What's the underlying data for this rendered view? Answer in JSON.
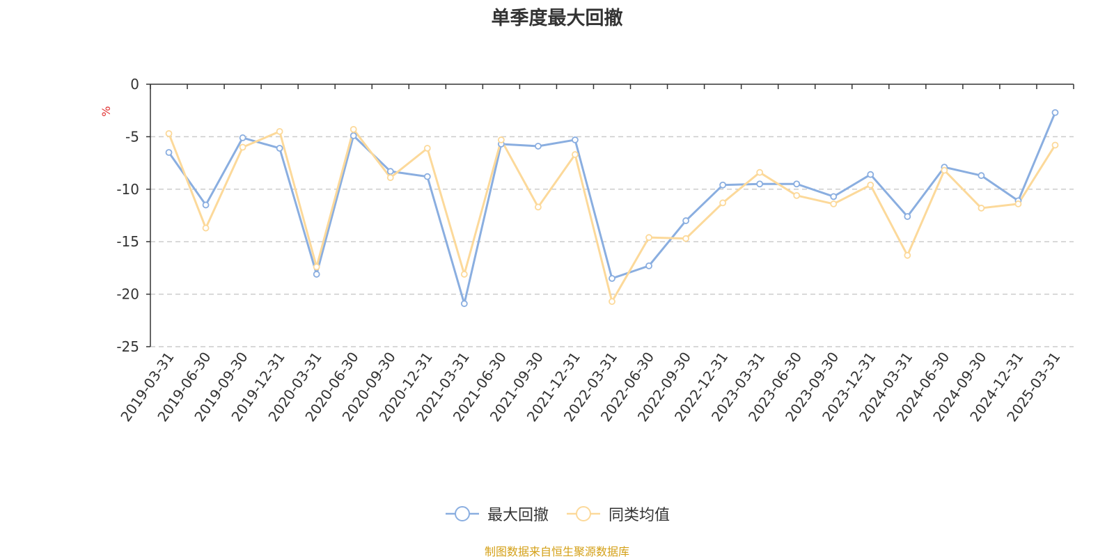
{
  "chart_data": {
    "type": "line",
    "title": "单季度最大回撤",
    "ylabel": "%",
    "ylim": [
      -25,
      0
    ],
    "yticks": [
      0,
      -5,
      -10,
      -15,
      -20,
      -25
    ],
    "ytick_labels": [
      "0",
      "-5",
      "-10",
      "-15",
      "-20",
      "-25"
    ],
    "grid": true,
    "legend_position": "bottom-center",
    "categories": [
      "2019-03-31",
      "2019-06-30",
      "2019-09-30",
      "2019-12-31",
      "2020-03-31",
      "2020-06-30",
      "2020-09-30",
      "2020-12-31",
      "2021-03-31",
      "2021-06-30",
      "2021-09-30",
      "2021-12-31",
      "2022-03-31",
      "2022-06-30",
      "2022-09-30",
      "2022-12-31",
      "2023-03-31",
      "2023-06-30",
      "2023-09-30",
      "2023-12-31",
      "2024-03-31",
      "2024-06-30",
      "2024-09-30",
      "2024-12-31",
      "2025-03-31"
    ],
    "series": [
      {
        "name": "最大回撤",
        "color": "#8aaee0",
        "values": [
          -6.5,
          -11.5,
          -5.1,
          -6.1,
          -18.1,
          -4.9,
          -8.3,
          -8.8,
          -20.9,
          -5.7,
          -5.9,
          -5.3,
          -18.5,
          -17.3,
          -13.0,
          -9.6,
          -9.5,
          -9.5,
          -10.7,
          -8.6,
          -12.6,
          -7.9,
          -8.7,
          -11.1,
          -2.7
        ]
      },
      {
        "name": "同类均值",
        "color": "#fcd99a",
        "values": [
          -4.7,
          -13.7,
          -6.0,
          -4.5,
          -17.4,
          -4.3,
          -8.9,
          -6.1,
          -18.1,
          -5.3,
          -11.7,
          -6.7,
          -20.7,
          -14.6,
          -14.7,
          -11.3,
          -8.4,
          -10.6,
          -11.4,
          -9.6,
          -16.3,
          -8.2,
          -11.8,
          -11.4,
          -5.8
        ]
      }
    ]
  },
  "source_text": "制图数据来自恒生聚源数据库",
  "colors": {
    "source": "#d4a017",
    "ylabel": "#e03030",
    "grid": "#cccccc",
    "axis": "#333333"
  }
}
